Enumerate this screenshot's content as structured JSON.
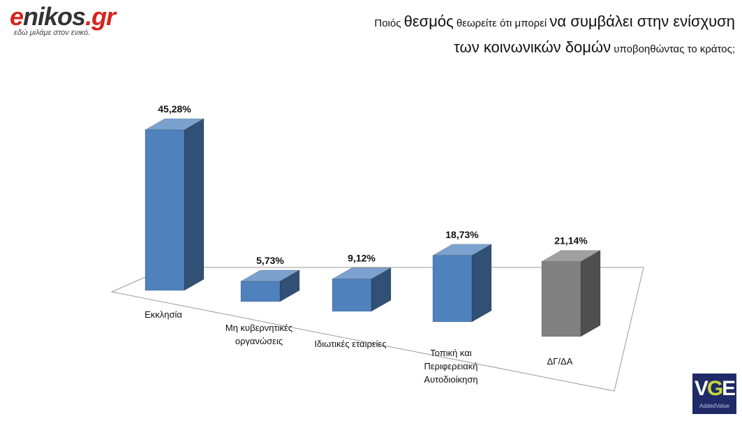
{
  "logo": {
    "text_e": "e",
    "text_main": "nikos",
    "text_domain": ".gr",
    "tagline": "εδώ μιλάμε στον ενικό."
  },
  "title": {
    "line1": [
      {
        "text": "Ποιός ",
        "style": "s"
      },
      {
        "text": "θεσμός",
        "style": "b"
      },
      {
        "text": " θεωρείτε ότι μπορεί ",
        "style": "s"
      },
      {
        "text": "να συμβάλει στην ενίσχυση",
        "style": "b"
      }
    ],
    "line2": [
      {
        "text": "των κοινωνικών δομών",
        "style": "b"
      },
      {
        "text": " υποβοηθώντας το κράτος;",
        "style": "s"
      }
    ]
  },
  "chart_data": {
    "type": "bar",
    "style": "3d-column",
    "categories": [
      [
        "Εκκλησία"
      ],
      [
        "Μη κυβερνητικές",
        "οργανώσεις"
      ],
      [
        "Ιδιωτικές εταιρείες"
      ],
      [
        "Τοπική και",
        "Περιφερειακή",
        "Αυτοδιοίκηση"
      ],
      [
        "ΔΓ/ΔΑ"
      ]
    ],
    "values": [
      45.28,
      5.73,
      9.12,
      18.73,
      21.14
    ],
    "value_labels": [
      "45,28%",
      "5,73%",
      "9,12%",
      "18,73%",
      "21,14%"
    ],
    "unit": "%",
    "colors": [
      "#4f81bd",
      "#4f81bd",
      "#4f81bd",
      "#4f81bd",
      "#808080"
    ],
    "ylim": [
      0,
      50
    ],
    "grid": false,
    "legend": "none"
  },
  "badge": {
    "big_v": "V",
    "big_g": "G",
    "big_e": "E",
    "small": "AddedValue"
  }
}
